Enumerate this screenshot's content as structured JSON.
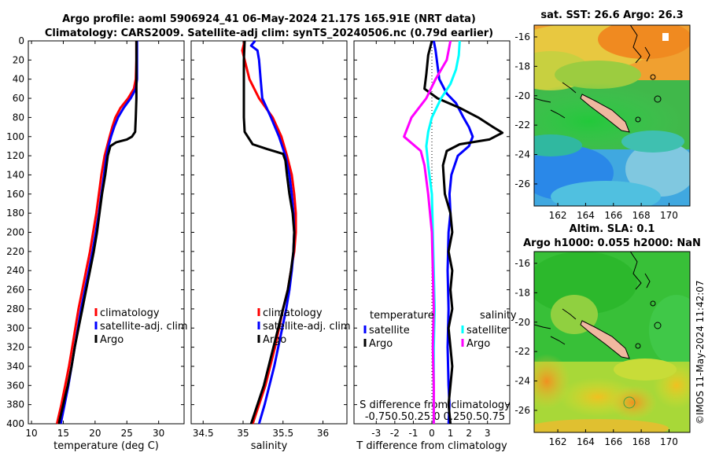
{
  "title_line1": "Argo profile: aoml 5906924_41 06-May-2024 21.17S 165.91E (NRT data)",
  "title_line2": "Climatology: CARS2009. Satellite-adj clim: synTS_20240506.nc (0.79d earlier)",
  "side_label": "©IMOS 11-May-2024 11:42:07",
  "colors": {
    "climatology": "#ff0000",
    "satellite": "#0000ff",
    "argo": "#000000",
    "sat_salinity": "#00ffff",
    "argo_salinity": "#ff00ff"
  },
  "chart_data": [
    {
      "type": "line",
      "id": "temperature",
      "xlabel": "temperature (deg C)",
      "ylabel": "depth",
      "xlim": [
        9.5,
        34
      ],
      "ylim": [
        400,
        0
      ],
      "xticks": [
        10,
        15,
        20,
        25,
        30
      ],
      "yticks": [
        0,
        20,
        40,
        60,
        80,
        100,
        120,
        140,
        160,
        180,
        200,
        220,
        240,
        260,
        280,
        300,
        320,
        340,
        360,
        380,
        400
      ],
      "legend": [
        "climatology",
        "satellite-adj. clim",
        "Argo"
      ],
      "series": [
        {
          "name": "climatology",
          "color": "#ff0000",
          "points": [
            [
              26.5,
              0
            ],
            [
              26.5,
              20
            ],
            [
              26.4,
              40
            ],
            [
              26.1,
              50
            ],
            [
              25.2,
              60
            ],
            [
              24.0,
              70
            ],
            [
              23.2,
              80
            ],
            [
              22.7,
              90
            ],
            [
              22.3,
              100
            ],
            [
              21.9,
              110
            ],
            [
              21.5,
              120
            ],
            [
              21.0,
              140
            ],
            [
              20.6,
              160
            ],
            [
              20.2,
              180
            ],
            [
              19.7,
              200
            ],
            [
              19.2,
              220
            ],
            [
              18.6,
              240
            ],
            [
              18.0,
              260
            ],
            [
              17.4,
              280
            ],
            [
              16.9,
              300
            ],
            [
              16.4,
              320
            ],
            [
              15.9,
              340
            ],
            [
              15.3,
              360
            ],
            [
              14.7,
              380
            ],
            [
              14.0,
              400
            ]
          ]
        },
        {
          "name": "satellite-adj. clim",
          "color": "#0000ff",
          "points": [
            [
              26.6,
              0
            ],
            [
              26.6,
              20
            ],
            [
              26.6,
              40
            ],
            [
              26.4,
              50
            ],
            [
              25.6,
              60
            ],
            [
              24.5,
              70
            ],
            [
              23.6,
              80
            ],
            [
              23.0,
              90
            ],
            [
              22.5,
              100
            ],
            [
              22.1,
              110
            ],
            [
              21.8,
              120
            ],
            [
              21.4,
              140
            ],
            [
              21.0,
              160
            ],
            [
              20.6,
              180
            ],
            [
              20.1,
              200
            ],
            [
              19.6,
              220
            ],
            [
              19.0,
              240
            ],
            [
              18.4,
              260
            ],
            [
              17.8,
              280
            ],
            [
              17.3,
              300
            ],
            [
              16.8,
              320
            ],
            [
              16.3,
              340
            ],
            [
              15.8,
              360
            ],
            [
              15.2,
              380
            ],
            [
              14.6,
              400
            ]
          ]
        },
        {
          "name": "Argo",
          "color": "#000000",
          "points": [
            [
              26.5,
              0
            ],
            [
              26.5,
              20
            ],
            [
              26.5,
              40
            ],
            [
              26.5,
              60
            ],
            [
              26.4,
              80
            ],
            [
              26.3,
              95
            ],
            [
              25.8,
              100
            ],
            [
              25.0,
              103
            ],
            [
              23.3,
              106
            ],
            [
              22.4,
              110
            ],
            [
              22.0,
              120
            ],
            [
              21.6,
              140
            ],
            [
              21.1,
              160
            ],
            [
              20.7,
              180
            ],
            [
              20.3,
              200
            ],
            [
              19.8,
              220
            ],
            [
              19.2,
              240
            ],
            [
              18.6,
              260
            ],
            [
              18.0,
              280
            ],
            [
              17.4,
              300
            ],
            [
              16.8,
              320
            ],
            [
              16.3,
              340
            ],
            [
              15.7,
              360
            ],
            [
              15.0,
              380
            ],
            [
              14.3,
              400
            ]
          ]
        }
      ]
    },
    {
      "type": "line",
      "id": "salinity",
      "xlabel": "salinity",
      "ylabel": "depth",
      "xlim": [
        34.35,
        36.3
      ],
      "ylim": [
        400,
        0
      ],
      "xticks": [
        34.5,
        35,
        35.5,
        36
      ],
      "legend": [
        "climatology",
        "satellite-adj. clim",
        "Argo"
      ],
      "series": [
        {
          "name": "climatology",
          "color": "#ff0000",
          "points": [
            [
              35.02,
              0
            ],
            [
              34.99,
              10
            ],
            [
              35.02,
              20
            ],
            [
              35.08,
              40
            ],
            [
              35.2,
              60
            ],
            [
              35.37,
              80
            ],
            [
              35.48,
              100
            ],
            [
              35.55,
              120
            ],
            [
              35.61,
              140
            ],
            [
              35.64,
              160
            ],
            [
              35.66,
              180
            ],
            [
              35.66,
              200
            ],
            [
              35.64,
              220
            ],
            [
              35.6,
              240
            ],
            [
              35.56,
              260
            ],
            [
              35.5,
              280
            ],
            [
              35.45,
              300
            ],
            [
              35.4,
              320
            ],
            [
              35.34,
              340
            ],
            [
              35.28,
              360
            ],
            [
              35.2,
              380
            ],
            [
              35.12,
              400
            ]
          ]
        },
        {
          "name": "satellite-adj. clim",
          "color": "#0000ff",
          "points": [
            [
              35.15,
              0
            ],
            [
              35.1,
              5
            ],
            [
              35.18,
              10
            ],
            [
              35.2,
              20
            ],
            [
              35.22,
              40
            ],
            [
              35.24,
              60
            ],
            [
              35.35,
              80
            ],
            [
              35.45,
              100
            ],
            [
              35.53,
              120
            ],
            [
              35.58,
              140
            ],
            [
              35.61,
              160
            ],
            [
              35.63,
              180
            ],
            [
              35.64,
              200
            ],
            [
              35.63,
              220
            ],
            [
              35.61,
              240
            ],
            [
              35.58,
              260
            ],
            [
              35.54,
              280
            ],
            [
              35.49,
              300
            ],
            [
              35.44,
              320
            ],
            [
              35.39,
              340
            ],
            [
              35.33,
              360
            ],
            [
              35.27,
              380
            ],
            [
              35.2,
              400
            ]
          ]
        },
        {
          "name": "Argo",
          "color": "#000000",
          "points": [
            [
              35.02,
              0
            ],
            [
              35.01,
              20
            ],
            [
              35.01,
              40
            ],
            [
              35.01,
              60
            ],
            [
              35.01,
              80
            ],
            [
              35.02,
              95
            ],
            [
              35.12,
              108
            ],
            [
              35.3,
              113
            ],
            [
              35.5,
              118
            ],
            [
              35.53,
              125
            ],
            [
              35.55,
              140
            ],
            [
              35.58,
              160
            ],
            [
              35.62,
              180
            ],
            [
              35.64,
              200
            ],
            [
              35.63,
              220
            ],
            [
              35.6,
              240
            ],
            [
              35.56,
              260
            ],
            [
              35.5,
              280
            ],
            [
              35.44,
              300
            ],
            [
              35.38,
              320
            ],
            [
              35.32,
              340
            ],
            [
              35.26,
              360
            ],
            [
              35.18,
              380
            ],
            [
              35.1,
              400
            ]
          ]
        }
      ]
    },
    {
      "type": "line",
      "id": "difference",
      "xlabel": "T difference from climatology",
      "xlabel_top": "S difference from climatology",
      "ylabel": "depth",
      "xlim": [
        -4.2,
        4.2
      ],
      "ylim": [
        400,
        0
      ],
      "xticks": [
        -3,
        -2,
        -1,
        0,
        1,
        2,
        3
      ],
      "secondary_ticklabels": "-0.750.50.25  0  0.250.50.75",
      "legend_left_header": "temperature",
      "legend_right_header": "salinity",
      "legend": [
        "satellite",
        "Argo",
        "satellite",
        "Argo"
      ],
      "series": [
        {
          "name": "satellite",
          "color": "#0000ff",
          "points": [
            [
              0.1,
              0
            ],
            [
              0.2,
              10
            ],
            [
              0.4,
              40
            ],
            [
              0.8,
              55
            ],
            [
              1.3,
              65
            ],
            [
              1.7,
              80
            ],
            [
              2.0,
              90
            ],
            [
              2.2,
              100
            ],
            [
              2.0,
              110
            ],
            [
              1.4,
              120
            ],
            [
              1.05,
              140
            ],
            [
              0.95,
              160
            ],
            [
              1.0,
              180
            ],
            [
              0.9,
              200
            ],
            [
              0.85,
              240
            ],
            [
              0.9,
              280
            ],
            [
              0.85,
              320
            ],
            [
              0.9,
              360
            ],
            [
              0.95,
              380
            ],
            [
              0.9,
              400
            ]
          ]
        },
        {
          "name": "Argo",
          "color": "#000000",
          "points": [
            [
              0,
              0
            ],
            [
              -0.2,
              15
            ],
            [
              -0.3,
              35
            ],
            [
              -0.4,
              50
            ],
            [
              0.3,
              60
            ],
            [
              1.5,
              70
            ],
            [
              2.5,
              80
            ],
            [
              3.3,
              90
            ],
            [
              3.8,
              96
            ],
            [
              3.1,
              103
            ],
            [
              1.5,
              108
            ],
            [
              0.8,
              115
            ],
            [
              0.6,
              130
            ],
            [
              0.7,
              160
            ],
            [
              1.0,
              180
            ],
            [
              1.1,
              200
            ],
            [
              0.9,
              220
            ],
            [
              1.1,
              240
            ],
            [
              1.0,
              260
            ],
            [
              1.1,
              280
            ],
            [
              0.9,
              300
            ],
            [
              1.0,
              320
            ],
            [
              1.1,
              340
            ],
            [
              1.0,
              360
            ],
            [
              0.9,
              380
            ],
            [
              1.0,
              400
            ]
          ]
        },
        {
          "name": "satellite",
          "color": "#00ffff",
          "points": [
            [
              1.5,
              0
            ],
            [
              1.45,
              15
            ],
            [
              1.3,
              30
            ],
            [
              1.0,
              45
            ],
            [
              0.5,
              60
            ],
            [
              0.0,
              80
            ],
            [
              -0.2,
              95
            ],
            [
              -0.3,
              110
            ],
            [
              -0.2,
              130
            ],
            [
              0.0,
              160
            ],
            [
              0.05,
              200
            ],
            [
              0.1,
              240
            ],
            [
              0.15,
              280
            ],
            [
              0.1,
              320
            ],
            [
              0.1,
              360
            ],
            [
              0.1,
              400
            ]
          ]
        },
        {
          "name": "Argo",
          "color": "#ff00ff",
          "points": [
            [
              1.0,
              0
            ],
            [
              0.8,
              20
            ],
            [
              0.2,
              40
            ],
            [
              -0.3,
              60
            ],
            [
              -1.1,
              80
            ],
            [
              -1.5,
              100
            ],
            [
              -0.6,
              115
            ],
            [
              -0.4,
              130
            ],
            [
              -0.2,
              160
            ],
            [
              0.0,
              200
            ],
            [
              0.05,
              240
            ],
            [
              0.1,
              280
            ],
            [
              0.05,
              320
            ],
            [
              0.1,
              360
            ],
            [
              0.1,
              400
            ]
          ]
        }
      ]
    },
    {
      "type": "heatmap",
      "id": "sst_map",
      "title": "sat. SST: 26.6 Argo: 26.3",
      "xticks": [
        162,
        164,
        166,
        168,
        170
      ],
      "yticks": [
        -16,
        -18,
        -20,
        -22,
        -24,
        -26
      ],
      "xlim": [
        160.3,
        171.5
      ],
      "ylim": [
        -27.5,
        -15.2
      ]
    },
    {
      "type": "heatmap",
      "id": "sla_map",
      "title_line1": "Altim. SLA: 0.1",
      "title_line2": "Argo h1000: 0.055 h2000: NaN",
      "xticks": [
        162,
        164,
        166,
        168,
        170
      ],
      "yticks": [
        -16,
        -18,
        -20,
        -22,
        -24,
        -26
      ],
      "xlim": [
        160.3,
        171.5
      ],
      "ylim": [
        -27.5,
        -15.2
      ]
    }
  ]
}
